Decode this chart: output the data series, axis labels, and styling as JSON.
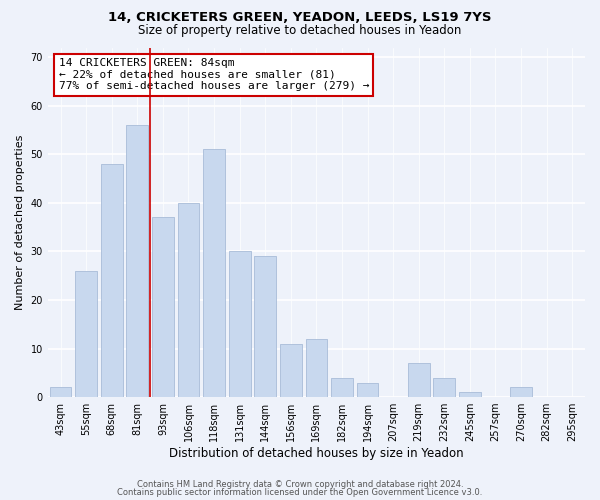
{
  "title1": "14, CRICKETERS GREEN, YEADON, LEEDS, LS19 7YS",
  "title2": "Size of property relative to detached houses in Yeadon",
  "xlabel": "Distribution of detached houses by size in Yeadon",
  "ylabel": "Number of detached properties",
  "bar_labels": [
    "43sqm",
    "55sqm",
    "68sqm",
    "81sqm",
    "93sqm",
    "106sqm",
    "118sqm",
    "131sqm",
    "144sqm",
    "156sqm",
    "169sqm",
    "182sqm",
    "194sqm",
    "207sqm",
    "219sqm",
    "232sqm",
    "245sqm",
    "257sqm",
    "270sqm",
    "282sqm",
    "295sqm"
  ],
  "bar_values": [
    2,
    26,
    48,
    56,
    37,
    40,
    51,
    30,
    29,
    11,
    12,
    4,
    3,
    0,
    7,
    4,
    1,
    0,
    2,
    0,
    0
  ],
  "bar_color": "#c8d8ee",
  "bar_edge_color": "#a8bcd8",
  "ylim": [
    0,
    72
  ],
  "yticks": [
    0,
    10,
    20,
    30,
    40,
    50,
    60,
    70
  ],
  "property_line_color": "#cc0000",
  "annotation_text": "14 CRICKETERS GREEN: 84sqm\n← 22% of detached houses are smaller (81)\n77% of semi-detached houses are larger (279) →",
  "annotation_box_color": "#ffffff",
  "annotation_box_edge_color": "#cc0000",
  "footer1": "Contains HM Land Registry data © Crown copyright and database right 2024.",
  "footer2": "Contains public sector information licensed under the Open Government Licence v3.0.",
  "background_color": "#eef2fa"
}
